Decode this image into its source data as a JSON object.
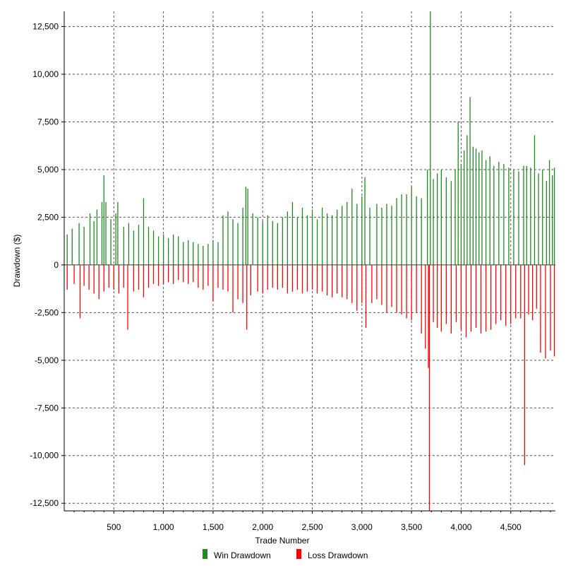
{
  "chart_data": {
    "type": "bar",
    "title": "",
    "xlabel": "Trade Number",
    "ylabel": "Drawdown ($)",
    "xlim": [
      0,
      4950
    ],
    "ylim": [
      -12900,
      13300
    ],
    "x_ticks": [
      500,
      1000,
      1500,
      2000,
      2500,
      3000,
      3500,
      4000,
      4500
    ],
    "x_tick_labels": [
      "500",
      "1,000",
      "1,500",
      "2,000",
      "2,500",
      "3,000",
      "3,500",
      "4,000",
      "4,500"
    ],
    "y_ticks": [
      12500,
      10000,
      7500,
      5000,
      2500,
      0,
      -2500,
      -5000,
      -7500,
      -10000,
      -12500
    ],
    "y_tick_labels": [
      "12,500",
      "10,000",
      "7,500",
      "5,000",
      "2,500",
      "0",
      "-2,500",
      "-5,000",
      "-7,500",
      "-10,000",
      "-12,500"
    ],
    "grid": true,
    "legend_position": "bottom-center",
    "series": [
      {
        "name": "Win Drawdown",
        "color": "#1f8a1f",
        "points": [
          [
            30,
            1600
          ],
          [
            80,
            1900
          ],
          [
            150,
            2200
          ],
          [
            200,
            2000
          ],
          [
            260,
            2700
          ],
          [
            300,
            2300
          ],
          [
            330,
            2900
          ],
          [
            380,
            3300
          ],
          [
            400,
            4700
          ],
          [
            420,
            3300
          ],
          [
            470,
            2400
          ],
          [
            520,
            2700
          ],
          [
            540,
            3300
          ],
          [
            600,
            2000
          ],
          [
            650,
            2200
          ],
          [
            700,
            1800
          ],
          [
            750,
            2100
          ],
          [
            800,
            3500
          ],
          [
            850,
            2000
          ],
          [
            900,
            1800
          ],
          [
            950,
            1500
          ],
          [
            1000,
            1600
          ],
          [
            1050,
            1400
          ],
          [
            1100,
            1600
          ],
          [
            1150,
            1500
          ],
          [
            1200,
            1200
          ],
          [
            1250,
            1300
          ],
          [
            1300,
            1200
          ],
          [
            1350,
            1100
          ],
          [
            1400,
            1000
          ],
          [
            1450,
            1100
          ],
          [
            1500,
            1300
          ],
          [
            1550,
            1200
          ],
          [
            1600,
            2600
          ],
          [
            1650,
            2800
          ],
          [
            1700,
            2400
          ],
          [
            1750,
            2200
          ],
          [
            1800,
            3000
          ],
          [
            1830,
            4100
          ],
          [
            1850,
            4000
          ],
          [
            1900,
            2700
          ],
          [
            1950,
            2500
          ],
          [
            2000,
            2300
          ],
          [
            2050,
            2600
          ],
          [
            2100,
            2300
          ],
          [
            2150,
            2200
          ],
          [
            2200,
            2500
          ],
          [
            2250,
            2800
          ],
          [
            2300,
            3300
          ],
          [
            2350,
            2500
          ],
          [
            2400,
            3000
          ],
          [
            2450,
            2600
          ],
          [
            2500,
            2900
          ],
          [
            2550,
            2400
          ],
          [
            2600,
            3000
          ],
          [
            2650,
            2700
          ],
          [
            2700,
            2600
          ],
          [
            2750,
            2900
          ],
          [
            2800,
            3100
          ],
          [
            2850,
            3300
          ],
          [
            2900,
            4000
          ],
          [
            2950,
            3200
          ],
          [
            3000,
            3600
          ],
          [
            3030,
            4600
          ],
          [
            3080,
            3000
          ],
          [
            3150,
            3200
          ],
          [
            3200,
            3000
          ],
          [
            3250,
            3200
          ],
          [
            3300,
            3100
          ],
          [
            3350,
            3500
          ],
          [
            3400,
            3700
          ],
          [
            3450,
            3700
          ],
          [
            3500,
            4100
          ],
          [
            3550,
            3600
          ],
          [
            3600,
            3500
          ],
          [
            3660,
            5000
          ],
          [
            3690,
            13300
          ],
          [
            3720,
            4500
          ],
          [
            3760,
            4800
          ],
          [
            3800,
            5000
          ],
          [
            3850,
            4600
          ],
          [
            3900,
            4400
          ],
          [
            3940,
            5000
          ],
          [
            3970,
            7500
          ],
          [
            4000,
            5300
          ],
          [
            4030,
            6000
          ],
          [
            4060,
            6800
          ],
          [
            4090,
            8800
          ],
          [
            4120,
            6200
          ],
          [
            4150,
            6100
          ],
          [
            4180,
            5900
          ],
          [
            4210,
            6000
          ],
          [
            4250,
            5500
          ],
          [
            4290,
            5700
          ],
          [
            4330,
            5200
          ],
          [
            4380,
            5400
          ],
          [
            4430,
            5300
          ],
          [
            4480,
            5100
          ],
          [
            4530,
            5000
          ],
          [
            4580,
            4900
          ],
          [
            4630,
            5200
          ],
          [
            4660,
            5200
          ],
          [
            4700,
            5100
          ],
          [
            4740,
            6800
          ],
          [
            4780,
            4800
          ],
          [
            4820,
            5000
          ],
          [
            4860,
            4400
          ],
          [
            4890,
            5500
          ],
          [
            4920,
            4700
          ],
          [
            4940,
            5100
          ]
        ]
      },
      {
        "name": "Loss Drawdown",
        "color": "#ff0000",
        "points": [
          [
            30,
            -1300
          ],
          [
            100,
            -1000
          ],
          [
            160,
            -2800
          ],
          [
            200,
            -1100
          ],
          [
            250,
            -1300
          ],
          [
            300,
            -1500
          ],
          [
            350,
            -1800
          ],
          [
            400,
            -1400
          ],
          [
            450,
            -1200
          ],
          [
            500,
            -1300
          ],
          [
            550,
            -1500
          ],
          [
            600,
            -1200
          ],
          [
            640,
            -3400
          ],
          [
            700,
            -1400
          ],
          [
            750,
            -1300
          ],
          [
            800,
            -1700
          ],
          [
            850,
            -1200
          ],
          [
            900,
            -1000
          ],
          [
            950,
            -1100
          ],
          [
            1000,
            -1000
          ],
          [
            1050,
            -900
          ],
          [
            1100,
            -1000
          ],
          [
            1150,
            -800
          ],
          [
            1200,
            -900
          ],
          [
            1250,
            -1000
          ],
          [
            1300,
            -900
          ],
          [
            1350,
            -1200
          ],
          [
            1400,
            -1300
          ],
          [
            1450,
            -1100
          ],
          [
            1500,
            -1900
          ],
          [
            1550,
            -1200
          ],
          [
            1600,
            -1300
          ],
          [
            1650,
            -1400
          ],
          [
            1700,
            -2500
          ],
          [
            1750,
            -1800
          ],
          [
            1800,
            -2000
          ],
          [
            1840,
            -3400
          ],
          [
            1880,
            -1600
          ],
          [
            1950,
            -1400
          ],
          [
            2000,
            -1500
          ],
          [
            2050,
            -1300
          ],
          [
            2100,
            -1200
          ],
          [
            2150,
            -1300
          ],
          [
            2200,
            -1200
          ],
          [
            2250,
            -1500
          ],
          [
            2300,
            -1400
          ],
          [
            2350,
            -1300
          ],
          [
            2400,
            -1500
          ],
          [
            2450,
            -1400
          ],
          [
            2500,
            -1300
          ],
          [
            2550,
            -1500
          ],
          [
            2600,
            -1400
          ],
          [
            2650,
            -1600
          ],
          [
            2700,
            -1700
          ],
          [
            2750,
            -1500
          ],
          [
            2800,
            -1700
          ],
          [
            2850,
            -1800
          ],
          [
            2900,
            -2000
          ],
          [
            2950,
            -2400
          ],
          [
            3000,
            -2000
          ],
          [
            3040,
            -3300
          ],
          [
            3100,
            -2000
          ],
          [
            3150,
            -1800
          ],
          [
            3200,
            -2100
          ],
          [
            3250,
            -2500
          ],
          [
            3300,
            -2200
          ],
          [
            3350,
            -2500
          ],
          [
            3400,
            -2600
          ],
          [
            3450,
            -2800
          ],
          [
            3500,
            -2900
          ],
          [
            3550,
            -2500
          ],
          [
            3600,
            -3600
          ],
          [
            3640,
            -4400
          ],
          [
            3670,
            -5400
          ],
          [
            3680,
            -12900
          ],
          [
            3720,
            -3000
          ],
          [
            3760,
            -3300
          ],
          [
            3800,
            -3500
          ],
          [
            3850,
            -3100
          ],
          [
            3900,
            -3600
          ],
          [
            3950,
            -3000
          ],
          [
            4000,
            -3400
          ],
          [
            4050,
            -3800
          ],
          [
            4100,
            -3500
          ],
          [
            4150,
            -3300
          ],
          [
            4200,
            -3600
          ],
          [
            4250,
            -3500
          ],
          [
            4300,
            -3400
          ],
          [
            4350,
            -3100
          ],
          [
            4400,
            -2900
          ],
          [
            4450,
            -3200
          ],
          [
            4500,
            -3100
          ],
          [
            4550,
            -2800
          ],
          [
            4600,
            -2800
          ],
          [
            4640,
            -10500
          ],
          [
            4680,
            -2600
          ],
          [
            4720,
            -2900
          ],
          [
            4760,
            -2300
          ],
          [
            4800,
            -4600
          ],
          [
            4850,
            -4900
          ],
          [
            4900,
            -4500
          ],
          [
            4940,
            -4800
          ]
        ]
      }
    ]
  }
}
